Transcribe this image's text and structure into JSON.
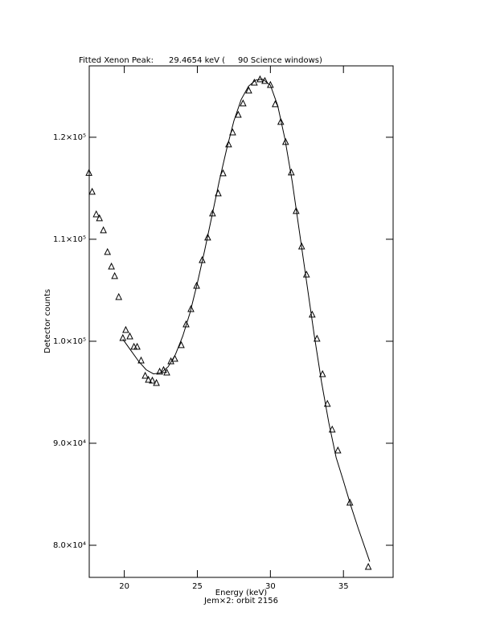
{
  "chart_data": {
    "type": "scatter",
    "title": "Fitted Xenon Peak:      29.4654 keV (     90 Science windows)",
    "x_label": "Energy (keV)",
    "subtitle": "Jem×2: orbit 2156",
    "y_label": "Detector counts",
    "xlim": [
      17.6,
      38.4
    ],
    "ylim": [
      76850,
      127000
    ],
    "xticks": [
      20,
      25,
      30,
      35
    ],
    "yticks": [
      {
        "value": 80000,
        "label": "8.0×10⁴"
      },
      {
        "value": 90000,
        "label": "9.0×10⁴"
      },
      {
        "value": 100000,
        "label": "1.0×10⁵"
      },
      {
        "value": 110000,
        "label": "1.1×10⁵"
      },
      {
        "value": 120000,
        "label": "1.2×10⁵"
      }
    ],
    "grid": false,
    "series": [
      {
        "marker": "triangle",
        "color": "#000000",
        "x": [
          17.58,
          17.8,
          18.08,
          18.3,
          18.57,
          18.85,
          19.12,
          19.34,
          19.62,
          19.9,
          20.1,
          20.38,
          20.66,
          20.88,
          21.15,
          21.43,
          21.65,
          21.92,
          22.2,
          22.42,
          22.69,
          22.91,
          23.19,
          23.46,
          23.9,
          24.23,
          24.56,
          24.95,
          25.33,
          25.71,
          26.04,
          26.43,
          26.76,
          27.14,
          27.42,
          27.8,
          28.13,
          28.52,
          28.9,
          29.29,
          29.62,
          30.0,
          30.33,
          30.71,
          31.04,
          31.43,
          31.76,
          32.14,
          32.47,
          32.86,
          33.19,
          33.57,
          33.9,
          34.23,
          34.62,
          35.44,
          36.7
        ],
        "values": [
          116500,
          114650,
          112440,
          112050,
          110870,
          108740,
          107320,
          106380,
          104330,
          100310,
          101100,
          100470,
          99450,
          99450,
          98110,
          96610,
          96220,
          96140,
          95900,
          97010,
          97170,
          96930,
          98030,
          98270,
          99610,
          101650,
          103150,
          105430,
          107950,
          110160,
          112520,
          114490,
          116460,
          119290,
          120470,
          122200,
          123310,
          124570,
          125350,
          125670,
          125510,
          125120,
          123230,
          121500,
          119530,
          116540,
          112760,
          109290,
          106530,
          102600,
          100240,
          96770,
          93860,
          91340,
          89290,
          84170,
          77870
        ]
      },
      {
        "marker": "line",
        "color": "#000000",
        "x": [
          19.9,
          20.5,
          21.0,
          21.5,
          22.0,
          22.5,
          23.0,
          23.5,
          24.0,
          24.5,
          25.0,
          25.5,
          26.0,
          26.5,
          27.0,
          27.5,
          28.0,
          28.5,
          29.0,
          29.4654,
          30.0,
          30.5,
          31.0,
          31.5,
          32.0,
          32.5,
          33.0,
          33.5,
          34.0,
          34.5,
          35.0,
          35.5,
          36.0,
          36.8
        ],
        "values": [
          100200,
          99000,
          98000,
          97200,
          96800,
          96900,
          97500,
          98700,
          100500,
          102800,
          105700,
          108900,
          112300,
          115700,
          118800,
          121600,
          123700,
          125000,
          125600,
          125700,
          125100,
          123100,
          119800,
          115600,
          110600,
          105600,
          100600,
          96000,
          92000,
          88600,
          86300,
          83900,
          81700,
          78400
        ]
      }
    ]
  }
}
